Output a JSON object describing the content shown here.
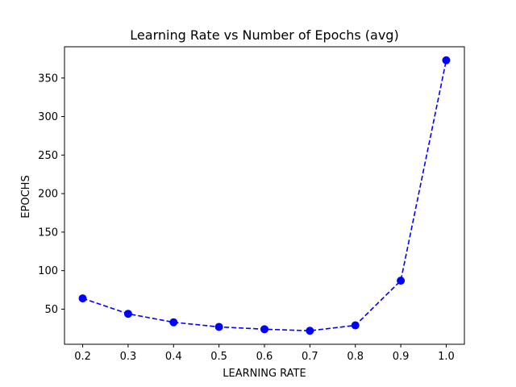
{
  "chart_data": {
    "type": "line",
    "title": "Learning Rate vs Number of Epochs (avg)",
    "xlabel": "LEARNING RATE",
    "ylabel": "EPOCHS",
    "x": [
      0.2,
      0.3,
      0.4,
      0.5,
      0.6,
      0.7,
      0.8,
      0.9,
      1.0
    ],
    "series": [
      {
        "values": [
          64,
          44,
          33,
          27,
          24,
          22,
          29,
          87,
          373
        ],
        "color": "#0000ff",
        "line_style": "dashed",
        "marker": "circle"
      }
    ],
    "xlim": [
      0.16,
      1.04
    ],
    "ylim": [
      4.45,
      390.55
    ],
    "xticks": [
      "0.2",
      "0.3",
      "0.4",
      "0.5",
      "0.6",
      "0.7",
      "0.8",
      "0.9",
      "1.0"
    ],
    "yticks": [
      "50",
      "100",
      "150",
      "200",
      "250",
      "300",
      "350"
    ],
    "grid": false,
    "legend": "none"
  }
}
